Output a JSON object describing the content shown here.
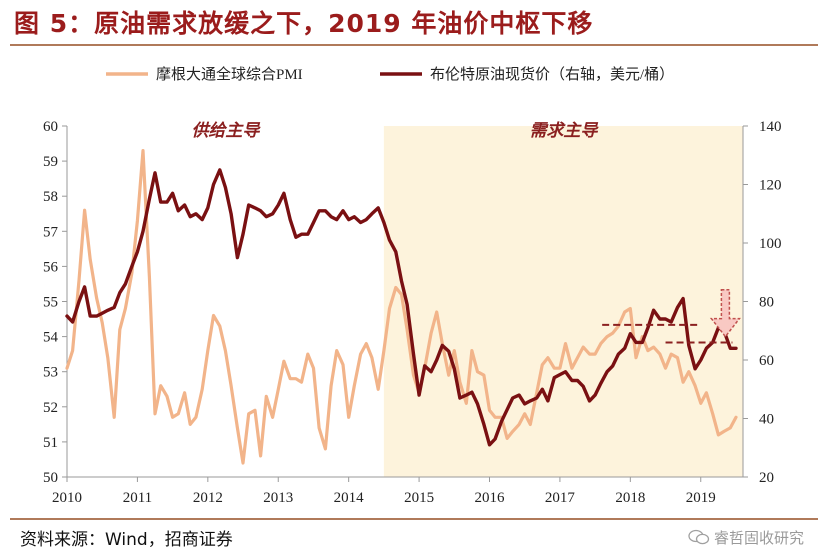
{
  "header": {
    "title": "图 5：原油需求放缓之下，2019 年油价中枢下移"
  },
  "footer": {
    "source": "资料来源：Wind，招商证券",
    "watermark": "睿哲固收研究"
  },
  "colors": {
    "title": "#9b1c1c",
    "pmi": "#f2b48a",
    "brent": "#7a1012",
    "shade": "#fdf3dc",
    "arrow_fill": "#f9c9c3",
    "arrow_stroke": "#c0504d",
    "annotation": "#8b2020"
  },
  "chart_data": {
    "type": "line",
    "title": "原油需求放缓之下，2019 年油价中枢下移",
    "legend": {
      "position": "top",
      "items": [
        "摩根大通全球综合PMI",
        "布伦特原油现货价（右轴，美元/桶）"
      ]
    },
    "x_axis": {
      "min": 2010.0,
      "max": 2019.6,
      "ticks": [
        "2010",
        "2011",
        "2012",
        "2013",
        "2014",
        "2015",
        "2016",
        "2017",
        "2018",
        "2019"
      ]
    },
    "y_left": {
      "min": 50,
      "max": 60,
      "ticks": [
        "50",
        "51",
        "52",
        "53",
        "54",
        "55",
        "56",
        "57",
        "58",
        "59",
        "60"
      ]
    },
    "y_right": {
      "min": 20,
      "max": 140,
      "ticks": [
        "20",
        "40",
        "60",
        "80",
        "100",
        "120",
        "140"
      ]
    },
    "grid": false,
    "regions": [
      {
        "label": "供给主导",
        "from": 2010.0,
        "to": 2014.5,
        "shaded": false
      },
      {
        "label": "需求主导",
        "from": 2014.5,
        "to": 2019.6,
        "shaded": true
      }
    ],
    "reference_lines": [
      {
        "axis": "right",
        "value": 72,
        "from": 2017.6,
        "to": 2018.95
      },
      {
        "axis": "right",
        "value": 66,
        "from": 2018.5,
        "to": 2019.45
      }
    ],
    "annotation_arrow": {
      "x": 2019.35,
      "from_value": 84,
      "to_value": 68
    },
    "series": [
      {
        "name": "摩根大通全球综合PMI",
        "axis": "left",
        "x": [
          2010.0,
          2010.08,
          2010.17,
          2010.25,
          2010.33,
          2010.42,
          2010.5,
          2010.58,
          2010.67,
          2010.75,
          2010.83,
          2010.92,
          2011.0,
          2011.08,
          2011.17,
          2011.25,
          2011.33,
          2011.42,
          2011.5,
          2011.58,
          2011.67,
          2011.75,
          2011.83,
          2011.92,
          2012.0,
          2012.08,
          2012.17,
          2012.25,
          2012.33,
          2012.42,
          2012.5,
          2012.58,
          2012.67,
          2012.75,
          2012.83,
          2012.92,
          2013.0,
          2013.08,
          2013.17,
          2013.25,
          2013.33,
          2013.42,
          2013.5,
          2013.58,
          2013.67,
          2013.75,
          2013.83,
          2013.92,
          2014.0,
          2014.08,
          2014.17,
          2014.25,
          2014.33,
          2014.42,
          2014.5,
          2014.58,
          2014.67,
          2014.75,
          2014.83,
          2014.92,
          2015.0,
          2015.08,
          2015.17,
          2015.25,
          2015.33,
          2015.42,
          2015.5,
          2015.58,
          2015.67,
          2015.75,
          2015.83,
          2015.92,
          2016.0,
          2016.08,
          2016.17,
          2016.25,
          2016.33,
          2016.42,
          2016.5,
          2016.58,
          2016.67,
          2016.75,
          2016.83,
          2016.92,
          2017.0,
          2017.08,
          2017.17,
          2017.25,
          2017.33,
          2017.42,
          2017.5,
          2017.58,
          2017.67,
          2017.75,
          2017.83,
          2017.92,
          2018.0,
          2018.08,
          2018.17,
          2018.25,
          2018.33,
          2018.42,
          2018.5,
          2018.58,
          2018.67,
          2018.75,
          2018.83,
          2018.92,
          2019.0,
          2019.08,
          2019.17,
          2019.25,
          2019.33,
          2019.42,
          2019.5
        ],
        "values": [
          53.1,
          53.6,
          55.6,
          57.6,
          56.2,
          55.1,
          54.4,
          53.4,
          51.7,
          54.2,
          54.8,
          55.8,
          57.3,
          59.3,
          55.7,
          51.8,
          52.6,
          52.3,
          51.7,
          51.8,
          52.4,
          51.5,
          51.7,
          52.5,
          53.6,
          54.6,
          54.3,
          53.6,
          52.6,
          51.4,
          50.4,
          51.8,
          51.9,
          50.6,
          52.3,
          51.7,
          52.5,
          53.3,
          52.8,
          52.8,
          52.7,
          53.5,
          53.1,
          51.4,
          50.8,
          52.6,
          53.6,
          53.2,
          51.7,
          52.6,
          53.5,
          53.8,
          53.4,
          52.5,
          53.6,
          54.8,
          55.4,
          55.2,
          54.2,
          52.9,
          52.4,
          53.1,
          54.1,
          54.7,
          53.8,
          52.9,
          53.6,
          52.7,
          52.1,
          53.6,
          53.0,
          52.9,
          51.9,
          51.7,
          51.7,
          51.1,
          51.3,
          51.5,
          51.8,
          51.5,
          52.4,
          53.2,
          53.4,
          53.1,
          53.1,
          53.8,
          53.1,
          53.4,
          53.7,
          53.5,
          53.5,
          53.8,
          54.0,
          54.1,
          54.3,
          54.7,
          54.8,
          53.4,
          54.0,
          53.6,
          53.7,
          53.5,
          53.1,
          53.5,
          53.4,
          52.7,
          53.0,
          52.6,
          52.1,
          52.4,
          51.8,
          51.2,
          51.3,
          51.4,
          51.7
        ]
      },
      {
        "name": "布伦特原油现货价（右轴，美元/桶）",
        "axis": "right",
        "x": [
          2010.0,
          2010.08,
          2010.17,
          2010.25,
          2010.33,
          2010.42,
          2010.5,
          2010.58,
          2010.67,
          2010.75,
          2010.83,
          2010.92,
          2011.0,
          2011.08,
          2011.17,
          2011.25,
          2011.33,
          2011.42,
          2011.5,
          2011.58,
          2011.67,
          2011.75,
          2011.83,
          2011.92,
          2012.0,
          2012.08,
          2012.17,
          2012.25,
          2012.33,
          2012.42,
          2012.5,
          2012.58,
          2012.67,
          2012.75,
          2012.83,
          2012.92,
          2013.0,
          2013.08,
          2013.17,
          2013.25,
          2013.33,
          2013.42,
          2013.5,
          2013.58,
          2013.67,
          2013.75,
          2013.83,
          2013.92,
          2014.0,
          2014.08,
          2014.17,
          2014.25,
          2014.33,
          2014.42,
          2014.5,
          2014.58,
          2014.67,
          2014.75,
          2014.83,
          2014.92,
          2015.0,
          2015.08,
          2015.17,
          2015.25,
          2015.33,
          2015.42,
          2015.5,
          2015.58,
          2015.67,
          2015.75,
          2015.83,
          2015.92,
          2016.0,
          2016.08,
          2016.17,
          2016.25,
          2016.33,
          2016.42,
          2016.5,
          2016.58,
          2016.67,
          2016.75,
          2016.83,
          2016.92,
          2017.0,
          2017.08,
          2017.17,
          2017.25,
          2017.33,
          2017.42,
          2017.5,
          2017.58,
          2017.67,
          2017.75,
          2017.83,
          2017.92,
          2018.0,
          2018.08,
          2018.17,
          2018.25,
          2018.33,
          2018.42,
          2018.5,
          2018.58,
          2018.67,
          2018.75,
          2018.83,
          2018.92,
          2019.0,
          2019.08,
          2019.17,
          2019.25,
          2019.33,
          2019.42,
          2019.5
        ],
        "values": [
          75,
          73,
          80,
          85,
          75,
          75,
          76,
          77,
          78,
          83,
          86,
          92,
          97,
          104,
          115,
          124,
          114,
          114,
          117,
          111,
          113,
          109,
          110,
          108,
          112,
          120,
          125,
          119,
          110,
          95,
          103,
          113,
          112,
          111,
          109,
          110,
          113,
          117,
          108,
          102,
          103,
          103,
          107,
          111,
          111,
          109,
          108,
          111,
          108,
          109,
          107,
          108,
          110,
          112,
          107,
          101,
          97,
          87,
          79,
          62,
          48,
          58,
          56,
          60,
          65,
          63,
          57,
          47,
          48,
          49,
          45,
          38,
          31,
          33,
          39,
          43,
          47,
          48,
          45,
          46,
          47,
          50,
          46,
          54,
          55,
          56,
          53,
          53,
          51,
          46,
          48,
          52,
          56,
          58,
          62,
          64,
          69,
          66,
          66,
          71,
          77,
          74,
          74,
          73,
          78,
          81,
          65,
          57,
          60,
          64,
          66,
          71,
          70,
          64,
          64
        ]
      }
    ]
  }
}
